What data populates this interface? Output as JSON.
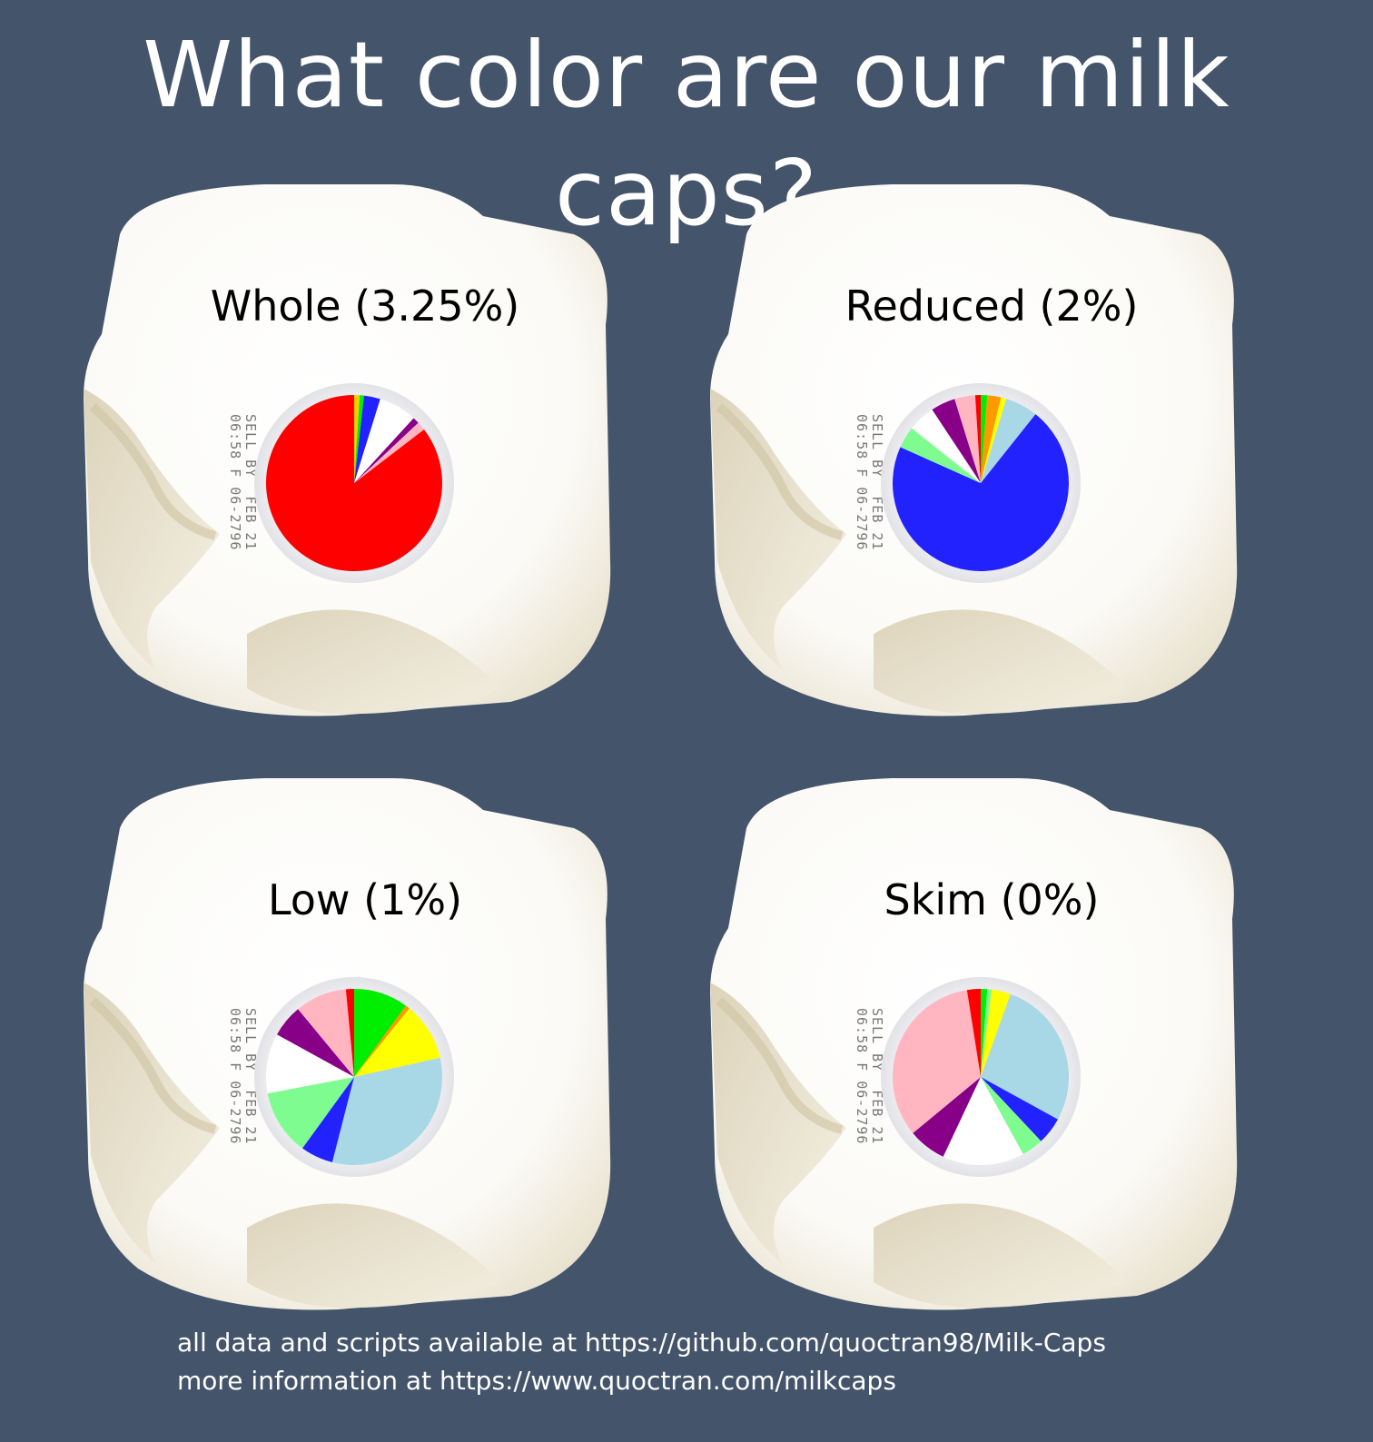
{
  "title": "What color are our milk caps?",
  "sell_by": [
    "SELL BY  FEB 21",
    "06:58 F 06-2796"
  ],
  "colors": {
    "red": "#ff0000",
    "blue": "#2222ff",
    "lightblue": "#a8d8e6",
    "white": "#ffffff",
    "green": "#00ee00",
    "lightgreen": "#7ffc8f",
    "yellow": "#ffff00",
    "orange": "#ff9900",
    "purple": "#880088",
    "pink": "#ffb6c1",
    "gold": "#ffcc00"
  },
  "chart_data": [
    {
      "type": "pie",
      "title": "Whole (3.25%)",
      "slices": [
        {
          "color": "gold",
          "value": 1.0
        },
        {
          "color": "green",
          "value": 0.8
        },
        {
          "color": "blue",
          "value": 3.0
        },
        {
          "color": "white",
          "value": 7.0
        },
        {
          "color": "purple",
          "value": 1.2
        },
        {
          "color": "pink",
          "value": 1.6
        },
        {
          "color": "red",
          "value": 85.4
        }
      ]
    },
    {
      "type": "pie",
      "title": "Reduced (2%)",
      "slices": [
        {
          "color": "green",
          "value": 1.2
        },
        {
          "color": "orange",
          "value": 2.5
        },
        {
          "color": "yellow",
          "value": 1.0
        },
        {
          "color": "lightblue",
          "value": 6.0
        },
        {
          "color": "blue",
          "value": 71.0
        },
        {
          "color": "lightgreen",
          "value": 4.0
        },
        {
          "color": "white",
          "value": 5.0
        },
        {
          "color": "purple",
          "value": 4.5
        },
        {
          "color": "pink",
          "value": 3.8
        },
        {
          "color": "red",
          "value": 1.0
        }
      ]
    },
    {
      "type": "pie",
      "title": "Low (1%)",
      "slices": [
        {
          "color": "green",
          "value": 10.0
        },
        {
          "color": "orange",
          "value": 0.8
        },
        {
          "color": "yellow",
          "value": 10.7
        },
        {
          "color": "lightblue",
          "value": 32.5
        },
        {
          "color": "blue",
          "value": 6.0
        },
        {
          "color": "lightgreen",
          "value": 12.0
        },
        {
          "color": "white",
          "value": 11.0
        },
        {
          "color": "purple",
          "value": 6.0
        },
        {
          "color": "pink",
          "value": 9.5
        },
        {
          "color": "red",
          "value": 1.5
        }
      ]
    },
    {
      "type": "pie",
      "title": "Skim (0%)",
      "slices": [
        {
          "color": "green",
          "value": 1.2
        },
        {
          "color": "lightgreen",
          "value": 0.8
        },
        {
          "color": "yellow",
          "value": 3.5
        },
        {
          "color": "lightblue",
          "value": 27.5
        },
        {
          "color": "blue",
          "value": 5.0
        },
        {
          "color": "lightgreen",
          "value": 4.0
        },
        {
          "color": "white",
          "value": 15.0
        },
        {
          "color": "purple",
          "value": 7.0
        },
        {
          "color": "pink",
          "value": 33.5
        },
        {
          "color": "red",
          "value": 2.5
        }
      ]
    }
  ],
  "footer": {
    "line1": "all data and scripts available at https://github.com/quoctran98/Milk-Caps",
    "line2": "more information at https://www.quoctran.com/milkcaps"
  }
}
